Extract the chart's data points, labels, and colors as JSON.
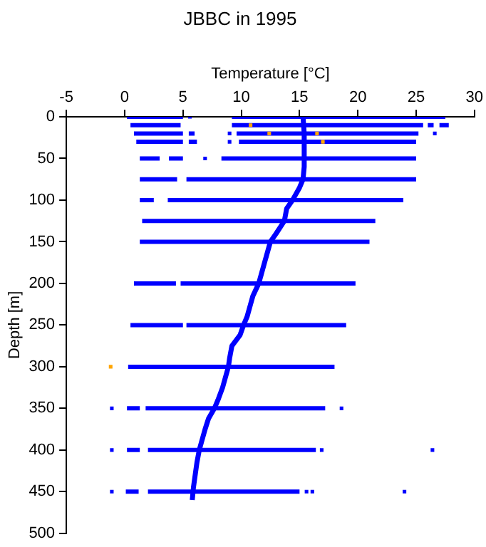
{
  "chart_data": {
    "type": "line",
    "title": "JBBC in 1995",
    "xlabel": "Temperature [°C]",
    "ylabel": "Depth [m]",
    "xlim": [
      -5,
      30
    ],
    "xticks": [
      -5,
      0,
      5,
      10,
      15,
      20,
      25,
      30
    ],
    "ylim": [
      500,
      0
    ],
    "yticks": [
      0,
      50,
      100,
      150,
      200,
      250,
      300,
      350,
      400,
      450,
      500
    ],
    "grid": false,
    "legend": false,
    "marker": "none",
    "series": [
      {
        "color": "#0000ff",
        "x": [
          0.2,
          5
        ],
        "values": [
          0,
          0
        ]
      },
      {
        "color": "#0000ff",
        "x": [
          9.2,
          27.5
        ],
        "values": [
          0,
          0
        ]
      },
      {
        "color": "#0000ff",
        "x": [
          0.5,
          4.8
        ],
        "values": [
          10,
          10
        ]
      },
      {
        "color": "#0000ff",
        "x": [
          9.2,
          25.6
        ],
        "values": [
          10,
          10
        ]
      },
      {
        "color": "#0000ff",
        "x": [
          26,
          26.5
        ],
        "values": [
          10,
          10
        ]
      },
      {
        "color": "#0000ff",
        "x": [
          27,
          27.8
        ],
        "values": [
          10,
          10
        ]
      },
      {
        "color": "#0000ff",
        "x": [
          0.8,
          5
        ],
        "values": [
          20,
          20
        ]
      },
      {
        "color": "#0000ff",
        "x": [
          5.5,
          6
        ],
        "values": [
          20,
          20
        ]
      },
      {
        "color": "#0000ff",
        "x": [
          9.6,
          25.2
        ],
        "values": [
          20,
          20
        ]
      },
      {
        "color": "#0000ff",
        "x": [
          1,
          5
        ],
        "values": [
          30,
          30
        ]
      },
      {
        "color": "#0000ff",
        "x": [
          5.5,
          6.2
        ],
        "values": [
          30,
          30
        ]
      },
      {
        "color": "#0000ff",
        "x": [
          9.8,
          25
        ],
        "values": [
          30,
          30
        ]
      },
      {
        "color": "#0000ff",
        "x": [
          1.3,
          3
        ],
        "values": [
          50,
          50
        ]
      },
      {
        "color": "#0000ff",
        "x": [
          3.8,
          5
        ],
        "values": [
          50,
          50
        ]
      },
      {
        "color": "#0000ff",
        "x": [
          8.3,
          25
        ],
        "values": [
          50,
          50
        ]
      },
      {
        "color": "#0000ff",
        "x": [
          1.3,
          4.5
        ],
        "values": [
          75,
          75
        ]
      },
      {
        "color": "#0000ff",
        "x": [
          5.3,
          25
        ],
        "values": [
          75,
          75
        ]
      },
      {
        "color": "#0000ff",
        "x": [
          1.3,
          2.5
        ],
        "values": [
          100,
          100
        ]
      },
      {
        "color": "#0000ff",
        "x": [
          3.7,
          23.9
        ],
        "values": [
          100,
          100
        ]
      },
      {
        "color": "#0000ff",
        "x": [
          1.5,
          21.5
        ],
        "values": [
          125,
          125
        ]
      },
      {
        "color": "#0000ff",
        "x": [
          1.3,
          21
        ],
        "values": [
          150,
          150
        ]
      },
      {
        "color": "#0000ff",
        "x": [
          0.8,
          4.4
        ],
        "values": [
          200,
          200
        ]
      },
      {
        "color": "#0000ff",
        "x": [
          4.8,
          19.8
        ],
        "values": [
          200,
          200
        ]
      },
      {
        "color": "#0000ff",
        "x": [
          0.5,
          5
        ],
        "values": [
          250,
          250
        ]
      },
      {
        "color": "#0000ff",
        "x": [
          5.3,
          19
        ],
        "values": [
          250,
          250
        ]
      },
      {
        "color": "#0000ff",
        "x": [
          0.3,
          18
        ],
        "values": [
          300,
          300
        ]
      },
      {
        "color": "#0000ff",
        "x": [
          0.2,
          1.3
        ],
        "values": [
          350,
          350
        ]
      },
      {
        "color": "#0000ff",
        "x": [
          1.8,
          17.2
        ],
        "values": [
          350,
          350
        ]
      },
      {
        "color": "#0000ff",
        "x": [
          0.2,
          1.3
        ],
        "values": [
          400,
          400
        ]
      },
      {
        "color": "#0000ff",
        "x": [
          2,
          16.4
        ],
        "values": [
          400,
          400
        ]
      },
      {
        "color": "#0000ff",
        "x": [
          0.1,
          1.2
        ],
        "values": [
          450,
          450
        ]
      },
      {
        "color": "#0000ff",
        "x": [
          2,
          15
        ],
        "values": [
          450,
          450
        ]
      },
      {
        "color": "#0000ff",
        "x": [
          15.3,
          15.4,
          15.4,
          15.3,
          15.0,
          14.6,
          14.4,
          13.9,
          13.7,
          13.0,
          12.5,
          12.2,
          12.0,
          11.7,
          11.5,
          11.0,
          10.8,
          10.5,
          10.2,
          9.9,
          9.2,
          9.0,
          8.9,
          8.6,
          8.4,
          8.0,
          7.7,
          7.2,
          6.9,
          6.6,
          6.4,
          6.2,
          6.1,
          5.9,
          5.8
        ],
        "values": [
          0,
          20,
          60,
          75,
          85,
          95,
          100,
          110,
          125,
          140,
          150,
          165,
          175,
          190,
          200,
          215,
          225,
          240,
          250,
          262,
          275,
          290,
          300,
          315,
          325,
          340,
          350,
          362,
          375,
          390,
          400,
          415,
          425,
          445,
          460
        ]
      },
      {
        "type": "scatter",
        "marker": "square",
        "color": "#0000ff",
        "x": [
          5.6,
          9.0,
          26.6,
          9.0,
          6.9,
          -1.1,
          18.6,
          -1.1,
          16.9,
          26.4,
          -1.1,
          15.6,
          16.1,
          24
        ],
        "values": [
          0,
          20,
          20,
          30,
          50,
          350,
          350,
          400,
          400,
          400,
          450,
          450,
          450,
          450
        ]
      },
      {
        "type": "scatter",
        "marker": "square",
        "color": "#ffa500",
        "x": [
          10.8,
          12.4,
          16.5,
          17,
          -1.2
        ],
        "values": [
          10,
          20,
          20,
          30,
          300
        ]
      }
    ]
  }
}
